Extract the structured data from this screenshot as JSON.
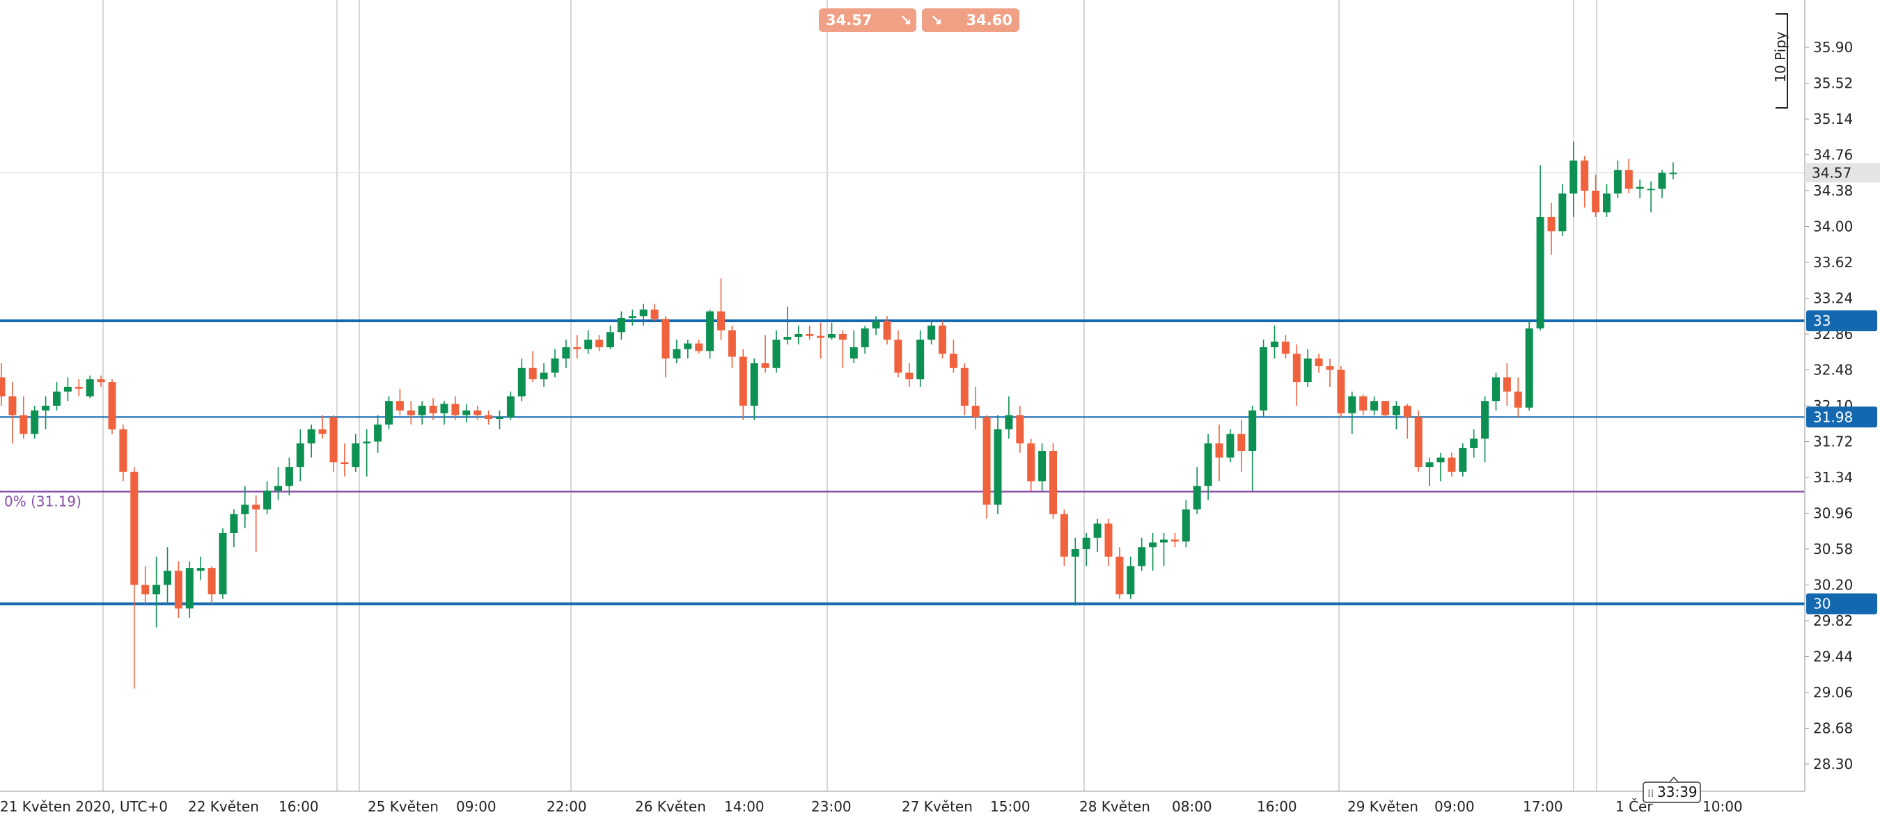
{
  "quotes": {
    "sell": {
      "price": "34.57",
      "arrow": "↘"
    },
    "buy": {
      "price": "34.60",
      "arrow": "↘"
    }
  },
  "pip_label": "10 Pipy",
  "timer": "33:39",
  "colors": {
    "up": "#0c9152",
    "down": "#f0623d",
    "hline": "#1368b0",
    "retracement": "#8b4fa6",
    "grid": "#c8c8c8"
  },
  "chart_data": {
    "type": "candlestick",
    "title": "",
    "y_ticks": [
      35.9,
      35.52,
      35.14,
      34.76,
      34.38,
      34.0,
      33.62,
      33.24,
      32.86,
      32.48,
      32.1,
      31.72,
      31.34,
      30.96,
      30.58,
      30.2,
      29.82,
      29.44,
      29.06,
      28.68,
      28.3
    ],
    "ylim": [
      27.93,
      36.35
    ],
    "x_ticks": [
      "21 Květen 2020, UTC+0",
      "22 Květen",
      "16:00",
      "25 Květen",
      "09:00",
      "22:00",
      "26 Květen",
      "14:00",
      "23:00",
      "27 Květen",
      "15:00",
      "28 Květen",
      "08:00",
      "16:00",
      "29 Květen",
      "09:00",
      "17:00",
      "1 Čer",
      "10:00"
    ],
    "current_price": {
      "label": "34.57",
      "value": 34.57
    },
    "horizontal_lines": [
      {
        "label": "33",
        "value": 33.0
      },
      {
        "label": "31.98",
        "value": 31.98
      },
      {
        "label": "30",
        "value": 30.0
      }
    ],
    "retracement": {
      "label": "0% (31.19)",
      "value": 31.19
    },
    "candles": [
      {
        "o": 32.4,
        "h": 32.55,
        "l": 32.1,
        "c": 32.2
      },
      {
        "o": 32.2,
        "h": 32.35,
        "l": 31.7,
        "c": 32.0
      },
      {
        "o": 32.0,
        "h": 32.2,
        "l": 31.75,
        "c": 31.8
      },
      {
        "o": 31.8,
        "h": 32.1,
        "l": 31.75,
        "c": 32.05
      },
      {
        "o": 32.05,
        "h": 32.2,
        "l": 31.85,
        "c": 32.1
      },
      {
        "o": 32.1,
        "h": 32.35,
        "l": 32.05,
        "c": 32.25
      },
      {
        "o": 32.25,
        "h": 32.4,
        "l": 32.15,
        "c": 32.3
      },
      {
        "o": 32.3,
        "h": 32.38,
        "l": 32.2,
        "c": 32.28
      },
      {
        "o": 32.2,
        "h": 32.42,
        "l": 32.18,
        "c": 32.38
      },
      {
        "o": 32.38,
        "h": 32.42,
        "l": 32.3,
        "c": 32.35
      },
      {
        "o": 32.35,
        "h": 32.38,
        "l": 31.8,
        "c": 31.85
      },
      {
        "o": 31.85,
        "h": 31.9,
        "l": 31.3,
        "c": 31.4
      },
      {
        "o": 31.4,
        "h": 31.45,
        "l": 29.1,
        "c": 30.2
      },
      {
        "o": 30.2,
        "h": 30.4,
        "l": 30.0,
        "c": 30.1
      },
      {
        "o": 30.1,
        "h": 30.5,
        "l": 29.75,
        "c": 30.2
      },
      {
        "o": 30.2,
        "h": 30.6,
        "l": 30.0,
        "c": 30.35
      },
      {
        "o": 30.35,
        "h": 30.45,
        "l": 29.85,
        "c": 29.95
      },
      {
        "o": 29.95,
        "h": 30.45,
        "l": 29.85,
        "c": 30.38
      },
      {
        "o": 30.35,
        "h": 30.5,
        "l": 30.25,
        "c": 30.38
      },
      {
        "o": 30.38,
        "h": 30.4,
        "l": 30.0,
        "c": 30.1
      },
      {
        "o": 30.1,
        "h": 30.8,
        "l": 30.05,
        "c": 30.75
      },
      {
        "o": 30.75,
        "h": 31.0,
        "l": 30.6,
        "c": 30.95
      },
      {
        "o": 30.95,
        "h": 31.25,
        "l": 30.8,
        "c": 31.05
      },
      {
        "o": 31.05,
        "h": 31.15,
        "l": 30.55,
        "c": 31.0
      },
      {
        "o": 31.0,
        "h": 31.3,
        "l": 30.95,
        "c": 31.2
      },
      {
        "o": 31.2,
        "h": 31.45,
        "l": 31.1,
        "c": 31.25
      },
      {
        "o": 31.25,
        "h": 31.55,
        "l": 31.15,
        "c": 31.45
      },
      {
        "o": 31.45,
        "h": 31.85,
        "l": 31.3,
        "c": 31.7
      },
      {
        "o": 31.7,
        "h": 31.9,
        "l": 31.55,
        "c": 31.85
      },
      {
        "o": 31.85,
        "h": 32.0,
        "l": 31.75,
        "c": 31.8
      },
      {
        "o": 31.98,
        "h": 32.0,
        "l": 31.4,
        "c": 31.5
      },
      {
        "o": 31.5,
        "h": 31.7,
        "l": 31.35,
        "c": 31.48
      },
      {
        "o": 31.45,
        "h": 31.8,
        "l": 31.4,
        "c": 31.7
      },
      {
        "o": 31.7,
        "h": 31.85,
        "l": 31.35,
        "c": 31.72
      },
      {
        "o": 31.72,
        "h": 32.0,
        "l": 31.6,
        "c": 31.9
      },
      {
        "o": 31.9,
        "h": 32.2,
        "l": 31.85,
        "c": 32.15
      },
      {
        "o": 32.15,
        "h": 32.28,
        "l": 32.0,
        "c": 32.05
      },
      {
        "o": 32.05,
        "h": 32.15,
        "l": 31.9,
        "c": 32.0
      },
      {
        "o": 32.0,
        "h": 32.15,
        "l": 31.9,
        "c": 32.1
      },
      {
        "o": 32.1,
        "h": 32.18,
        "l": 31.95,
        "c": 32.02
      },
      {
        "o": 32.02,
        "h": 32.15,
        "l": 31.9,
        "c": 32.12
      },
      {
        "o": 32.12,
        "h": 32.2,
        "l": 31.95,
        "c": 32.0
      },
      {
        "o": 32.0,
        "h": 32.12,
        "l": 31.92,
        "c": 32.05
      },
      {
        "o": 32.05,
        "h": 32.1,
        "l": 31.95,
        "c": 32.0
      },
      {
        "o": 32.0,
        "h": 32.05,
        "l": 31.9,
        "c": 31.96
      },
      {
        "o": 31.96,
        "h": 32.05,
        "l": 31.85,
        "c": 31.98
      },
      {
        "o": 31.98,
        "h": 32.25,
        "l": 31.95,
        "c": 32.2
      },
      {
        "o": 32.2,
        "h": 32.6,
        "l": 32.15,
        "c": 32.5
      },
      {
        "o": 32.5,
        "h": 32.68,
        "l": 32.35,
        "c": 32.38
      },
      {
        "o": 32.38,
        "h": 32.55,
        "l": 32.3,
        "c": 32.45
      },
      {
        "o": 32.45,
        "h": 32.7,
        "l": 32.4,
        "c": 32.6
      },
      {
        "o": 32.6,
        "h": 32.8,
        "l": 32.5,
        "c": 32.72
      },
      {
        "o": 32.72,
        "h": 32.85,
        "l": 32.6,
        "c": 32.7
      },
      {
        "o": 32.7,
        "h": 32.9,
        "l": 32.65,
        "c": 32.8
      },
      {
        "o": 32.8,
        "h": 32.85,
        "l": 32.68,
        "c": 32.72
      },
      {
        "o": 32.72,
        "h": 32.95,
        "l": 32.7,
        "c": 32.88
      },
      {
        "o": 32.88,
        "h": 33.1,
        "l": 32.8,
        "c": 33.03
      },
      {
        "o": 33.03,
        "h": 33.12,
        "l": 32.95,
        "c": 33.05
      },
      {
        "o": 33.05,
        "h": 33.18,
        "l": 32.95,
        "c": 33.12
      },
      {
        "o": 33.12,
        "h": 33.18,
        "l": 33.0,
        "c": 33.02
      },
      {
        "o": 33.02,
        "h": 33.05,
        "l": 32.4,
        "c": 32.6
      },
      {
        "o": 32.6,
        "h": 32.8,
        "l": 32.55,
        "c": 32.7
      },
      {
        "o": 32.7,
        "h": 32.8,
        "l": 32.6,
        "c": 32.76
      },
      {
        "o": 32.76,
        "h": 32.8,
        "l": 32.65,
        "c": 32.68
      },
      {
        "o": 32.68,
        "h": 33.12,
        "l": 32.6,
        "c": 33.1
      },
      {
        "o": 33.1,
        "h": 33.45,
        "l": 32.8,
        "c": 32.9
      },
      {
        "o": 32.9,
        "h": 32.95,
        "l": 32.5,
        "c": 32.62
      },
      {
        "o": 32.62,
        "h": 32.7,
        "l": 31.95,
        "c": 32.1
      },
      {
        "o": 32.1,
        "h": 32.6,
        "l": 31.95,
        "c": 32.55
      },
      {
        "o": 32.55,
        "h": 32.85,
        "l": 32.45,
        "c": 32.5
      },
      {
        "o": 32.5,
        "h": 32.9,
        "l": 32.45,
        "c": 32.8
      },
      {
        "o": 32.8,
        "h": 33.15,
        "l": 32.75,
        "c": 32.83
      },
      {
        "o": 32.83,
        "h": 32.95,
        "l": 32.75,
        "c": 32.86
      },
      {
        "o": 32.86,
        "h": 32.95,
        "l": 32.8,
        "c": 32.84
      },
      {
        "o": 32.84,
        "h": 32.98,
        "l": 32.6,
        "c": 32.82
      },
      {
        "o": 32.82,
        "h": 32.98,
        "l": 32.8,
        "c": 32.86
      },
      {
        "o": 32.86,
        "h": 32.9,
        "l": 32.5,
        "c": 32.8
      },
      {
        "o": 32.6,
        "h": 32.9,
        "l": 32.55,
        "c": 32.72
      },
      {
        "o": 32.72,
        "h": 32.95,
        "l": 32.65,
        "c": 32.92
      },
      {
        "o": 32.92,
        "h": 33.05,
        "l": 32.85,
        "c": 33.0
      },
      {
        "o": 33.0,
        "h": 33.05,
        "l": 32.75,
        "c": 32.8
      },
      {
        "o": 32.8,
        "h": 32.9,
        "l": 32.4,
        "c": 32.45
      },
      {
        "o": 32.45,
        "h": 32.55,
        "l": 32.3,
        "c": 32.38
      },
      {
        "o": 32.38,
        "h": 32.9,
        "l": 32.3,
        "c": 32.8
      },
      {
        "o": 32.8,
        "h": 33.0,
        "l": 32.75,
        "c": 32.95
      },
      {
        "o": 32.95,
        "h": 33.0,
        "l": 32.6,
        "c": 32.65
      },
      {
        "o": 32.65,
        "h": 32.8,
        "l": 32.45,
        "c": 32.5
      },
      {
        "o": 32.5,
        "h": 32.55,
        "l": 32.0,
        "c": 32.1
      },
      {
        "o": 32.1,
        "h": 32.3,
        "l": 31.85,
        "c": 31.98
      },
      {
        "o": 31.98,
        "h": 32.0,
        "l": 30.9,
        "c": 31.05
      },
      {
        "o": 31.05,
        "h": 32.0,
        "l": 30.95,
        "c": 31.85
      },
      {
        "o": 31.85,
        "h": 32.2,
        "l": 31.75,
        "c": 32.0
      },
      {
        "o": 32.0,
        "h": 32.1,
        "l": 31.6,
        "c": 31.7
      },
      {
        "o": 31.7,
        "h": 31.75,
        "l": 31.2,
        "c": 31.3
      },
      {
        "o": 31.3,
        "h": 31.7,
        "l": 31.2,
        "c": 31.62
      },
      {
        "o": 31.62,
        "h": 31.7,
        "l": 30.9,
        "c": 30.95
      },
      {
        "o": 30.95,
        "h": 31.0,
        "l": 30.4,
        "c": 30.5
      },
      {
        "o": 30.5,
        "h": 30.7,
        "l": 29.98,
        "c": 30.58
      },
      {
        "o": 30.58,
        "h": 30.75,
        "l": 30.4,
        "c": 30.7
      },
      {
        "o": 30.7,
        "h": 30.9,
        "l": 30.55,
        "c": 30.85
      },
      {
        "o": 30.85,
        "h": 30.9,
        "l": 30.4,
        "c": 30.5
      },
      {
        "o": 30.5,
        "h": 30.6,
        "l": 30.05,
        "c": 30.1
      },
      {
        "o": 30.1,
        "h": 30.5,
        "l": 30.05,
        "c": 30.4
      },
      {
        "o": 30.4,
        "h": 30.7,
        "l": 30.35,
        "c": 30.6
      },
      {
        "o": 30.6,
        "h": 30.75,
        "l": 30.35,
        "c": 30.65
      },
      {
        "o": 30.65,
        "h": 30.75,
        "l": 30.4,
        "c": 30.68
      },
      {
        "o": 30.68,
        "h": 30.75,
        "l": 30.6,
        "c": 30.66
      },
      {
        "o": 30.66,
        "h": 31.1,
        "l": 30.6,
        "c": 31.0
      },
      {
        "o": 31.0,
        "h": 31.45,
        "l": 30.95,
        "c": 31.25
      },
      {
        "o": 31.25,
        "h": 31.8,
        "l": 31.1,
        "c": 31.7
      },
      {
        "o": 31.7,
        "h": 31.9,
        "l": 31.3,
        "c": 31.55
      },
      {
        "o": 31.55,
        "h": 31.85,
        "l": 31.5,
        "c": 31.8
      },
      {
        "o": 31.8,
        "h": 31.95,
        "l": 31.4,
        "c": 31.62
      },
      {
        "o": 31.62,
        "h": 32.1,
        "l": 31.2,
        "c": 32.05
      },
      {
        "o": 32.05,
        "h": 32.8,
        "l": 31.98,
        "c": 32.72
      },
      {
        "o": 32.72,
        "h": 32.95,
        "l": 32.6,
        "c": 32.78
      },
      {
        "o": 32.78,
        "h": 32.85,
        "l": 32.6,
        "c": 32.65
      },
      {
        "o": 32.65,
        "h": 32.75,
        "l": 32.1,
        "c": 32.35
      },
      {
        "o": 32.35,
        "h": 32.7,
        "l": 32.3,
        "c": 32.6
      },
      {
        "o": 32.6,
        "h": 32.65,
        "l": 32.45,
        "c": 32.52
      },
      {
        "o": 32.52,
        "h": 32.6,
        "l": 32.3,
        "c": 32.48
      },
      {
        "o": 32.48,
        "h": 32.52,
        "l": 31.98,
        "c": 32.02
      },
      {
        "o": 32.02,
        "h": 32.25,
        "l": 31.8,
        "c": 32.2
      },
      {
        "o": 32.2,
        "h": 32.22,
        "l": 32.0,
        "c": 32.05
      },
      {
        "o": 32.05,
        "h": 32.2,
        "l": 32.0,
        "c": 32.15
      },
      {
        "o": 32.15,
        "h": 32.15,
        "l": 31.98,
        "c": 32.0
      },
      {
        "o": 32.0,
        "h": 32.15,
        "l": 31.85,
        "c": 32.1
      },
      {
        "o": 32.1,
        "h": 32.12,
        "l": 31.75,
        "c": 31.98
      },
      {
        "o": 31.98,
        "h": 32.05,
        "l": 31.4,
        "c": 31.45
      },
      {
        "o": 31.45,
        "h": 31.55,
        "l": 31.25,
        "c": 31.5
      },
      {
        "o": 31.5,
        "h": 31.6,
        "l": 31.3,
        "c": 31.55
      },
      {
        "o": 31.55,
        "h": 31.6,
        "l": 31.35,
        "c": 31.4
      },
      {
        "o": 31.4,
        "h": 31.7,
        "l": 31.35,
        "c": 31.65
      },
      {
        "o": 31.65,
        "h": 31.85,
        "l": 31.55,
        "c": 31.75
      },
      {
        "o": 31.75,
        "h": 32.2,
        "l": 31.5,
        "c": 32.15
      },
      {
        "o": 32.15,
        "h": 32.45,
        "l": 32.05,
        "c": 32.4
      },
      {
        "o": 32.4,
        "h": 32.55,
        "l": 32.1,
        "c": 32.25
      },
      {
        "o": 32.25,
        "h": 32.4,
        "l": 31.98,
        "c": 32.08
      },
      {
        "o": 32.08,
        "h": 33.0,
        "l": 32.05,
        "c": 32.92
      },
      {
        "o": 32.92,
        "h": 34.65,
        "l": 32.9,
        "c": 34.1
      },
      {
        "o": 34.1,
        "h": 34.25,
        "l": 33.7,
        "c": 33.95
      },
      {
        "o": 33.95,
        "h": 34.45,
        "l": 33.9,
        "c": 34.35
      },
      {
        "o": 34.35,
        "h": 34.9,
        "l": 34.1,
        "c": 34.7
      },
      {
        "o": 34.7,
        "h": 34.75,
        "l": 34.2,
        "c": 34.38
      },
      {
        "o": 34.38,
        "h": 34.55,
        "l": 34.1,
        "c": 34.15
      },
      {
        "o": 34.15,
        "h": 34.45,
        "l": 34.1,
        "c": 34.35
      },
      {
        "o": 34.35,
        "h": 34.7,
        "l": 34.3,
        "c": 34.6
      },
      {
        "o": 34.6,
        "h": 34.72,
        "l": 34.35,
        "c": 34.4
      },
      {
        "o": 34.4,
        "h": 34.5,
        "l": 34.3,
        "c": 34.42
      },
      {
        "o": 34.4,
        "h": 34.48,
        "l": 34.15,
        "c": 34.4
      },
      {
        "o": 34.4,
        "h": 34.6,
        "l": 34.3,
        "c": 34.57
      },
      {
        "o": 34.57,
        "h": 34.68,
        "l": 34.5,
        "c": 34.57
      }
    ]
  }
}
